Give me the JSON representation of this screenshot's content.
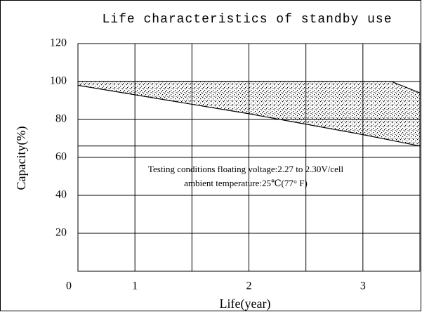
{
  "chart_data": {
    "type": "band",
    "title": "Life characteristics of standby use",
    "xlabel": "Life(year)",
    "ylabel": "Capacity(%)",
    "annotations": [
      "Testing conditions floating voltage:2.27 to 2.30V/cell",
      "ambient temperature:25℃(77° F)"
    ],
    "x": [
      0.5,
      1,
      2,
      3,
      3.25,
      3.5
    ],
    "upper": [
      100,
      100,
      100,
      100,
      100,
      94
    ],
    "lower": [
      98,
      93,
      83,
      72,
      69,
      66
    ],
    "color": "#000000",
    "xlim": [
      0.5,
      3.5
    ],
    "xticks": [
      {
        "value": 0.5,
        "label": "0"
      },
      1,
      2,
      3
    ],
    "xgrid": [
      0.5,
      1,
      1.5,
      2,
      2.5,
      3,
      3.5
    ],
    "ylim": [
      0,
      120
    ],
    "yticks": [
      20,
      40,
      60,
      80,
      100,
      120
    ],
    "reference_lines": [
      66
    ],
    "grid": true
  }
}
